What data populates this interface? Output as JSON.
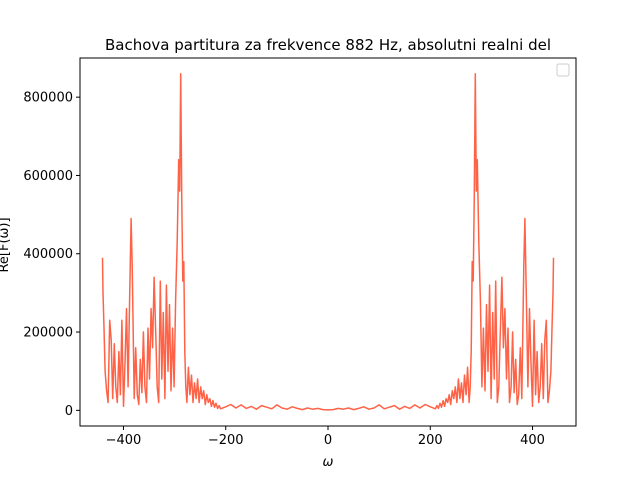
{
  "chart_data": {
    "type": "line",
    "title": "Bachova partitura za frekvence 882 Hz, absolutni realni del",
    "xlabel": "ω",
    "ylabel": "Re[F(ω)]",
    "xlim": [
      -485,
      485
    ],
    "ylim": [
      -40000,
      900000
    ],
    "x_ticks": [
      -400,
      -200,
      0,
      200,
      400
    ],
    "x_tick_labels": [
      "−400",
      "−200",
      "0",
      "200",
      "400"
    ],
    "y_ticks": [
      0,
      200000,
      400000,
      600000,
      800000
    ],
    "y_tick_labels": [
      "0",
      "200000",
      "400000",
      "600000",
      "800000"
    ],
    "grid": false,
    "legend": {
      "placement": "top-right",
      "entries": []
    },
    "series": [
      {
        "color": "#ff6347",
        "x": [
          -441,
          -440,
          -438,
          -436,
          -433,
          -430,
          -427,
          -424,
          -421,
          -418,
          -415,
          -412,
          -409,
          -406,
          -403,
          -400,
          -397,
          -394,
          -391,
          -388,
          -385,
          -383,
          -381,
          -379,
          -376,
          -373,
          -370,
          -367,
          -364,
          -361,
          -358,
          -355,
          -352,
          -349,
          -346,
          -343,
          -340,
          -337,
          -334,
          -331,
          -328,
          -325,
          -322,
          -319,
          -316,
          -313,
          -310,
          -307,
          -304,
          -301,
          -298,
          -295,
          -292,
          -290,
          -288,
          -286,
          -284,
          -282,
          -280,
          -278,
          -276,
          -273,
          -270,
          -267,
          -264,
          -261,
          -258,
          -255,
          -252,
          -249,
          -246,
          -243,
          -240,
          -237,
          -234,
          -231,
          -228,
          -225,
          -222,
          -219,
          -216,
          -213,
          -210,
          -200,
          -190,
          -180,
          -170,
          -160,
          -150,
          -140,
          -130,
          -120,
          -110,
          -100,
          -90,
          -80,
          -70,
          -60,
          -50,
          -40,
          -30,
          -20,
          -10,
          0,
          10,
          20,
          30,
          40,
          50,
          60,
          70,
          80,
          90,
          100,
          110,
          120,
          130,
          140,
          150,
          160,
          170,
          180,
          190,
          200,
          210,
          213,
          216,
          219,
          222,
          225,
          228,
          231,
          234,
          237,
          240,
          243,
          246,
          249,
          252,
          255,
          258,
          261,
          264,
          267,
          270,
          273,
          276,
          278,
          280,
          282,
          284,
          286,
          288,
          290,
          292,
          295,
          298,
          301,
          304,
          307,
          310,
          313,
          316,
          319,
          322,
          325,
          328,
          331,
          334,
          337,
          340,
          343,
          346,
          349,
          352,
          355,
          358,
          361,
          364,
          367,
          370,
          373,
          376,
          379,
          381,
          383,
          385,
          388,
          391,
          394,
          397,
          400,
          403,
          406,
          409,
          412,
          415,
          418,
          421,
          424,
          427,
          430,
          433,
          436,
          438,
          440,
          441
        ],
        "y": [
          390000,
          300000,
          210000,
          100000,
          50000,
          20000,
          230000,
          180000,
          30000,
          170000,
          60000,
          20000,
          150000,
          40000,
          230000,
          10000,
          120000,
          260000,
          60000,
          280000,
          490000,
          370000,
          200000,
          30000,
          160000,
          40000,
          15000,
          130000,
          45000,
          200000,
          60000,
          20000,
          210000,
          80000,
          260000,
          160000,
          340000,
          200000,
          60000,
          20000,
          330000,
          80000,
          250000,
          30000,
          320000,
          100000,
          270000,
          50000,
          210000,
          60000,
          280000,
          430000,
          640000,
          560000,
          860000,
          530000,
          330000,
          380000,
          150000,
          60000,
          20000,
          110000,
          40000,
          90000,
          20000,
          70000,
          30000,
          80000,
          20000,
          60000,
          30000,
          50000,
          15000,
          40000,
          20000,
          30000,
          10000,
          25000,
          8000,
          18000,
          5000,
          12000,
          4000,
          9000,
          15000,
          6000,
          14000,
          5000,
          10000,
          3000,
          12000,
          8000,
          4000,
          14000,
          6000,
          3000,
          9000,
          5000,
          2000,
          6000,
          3000,
          5000,
          2000,
          1000,
          2000,
          5000,
          3000,
          6000,
          2000,
          5000,
          9000,
          3000,
          6000,
          14000,
          4000,
          8000,
          12000,
          3000,
          10000,
          5000,
          14000,
          6000,
          15000,
          9000,
          4000,
          12000,
          5000,
          18000,
          8000,
          25000,
          10000,
          30000,
          20000,
          40000,
          15000,
          50000,
          30000,
          60000,
          20000,
          80000,
          30000,
          70000,
          20000,
          90000,
          40000,
          110000,
          20000,
          60000,
          150000,
          380000,
          330000,
          530000,
          860000,
          560000,
          640000,
          430000,
          280000,
          60000,
          210000,
          50000,
          270000,
          100000,
          320000,
          30000,
          250000,
          80000,
          330000,
          20000,
          60000,
          200000,
          340000,
          160000,
          260000,
          80000,
          210000,
          20000,
          60000,
          200000,
          45000,
          130000,
          15000,
          40000,
          160000,
          30000,
          200000,
          370000,
          490000,
          280000,
          60000,
          260000,
          120000,
          10000,
          230000,
          40000,
          150000,
          20000,
          60000,
          170000,
          30000,
          180000,
          230000,
          20000,
          50000,
          100000,
          210000,
          300000,
          390000
        ]
      }
    ]
  }
}
